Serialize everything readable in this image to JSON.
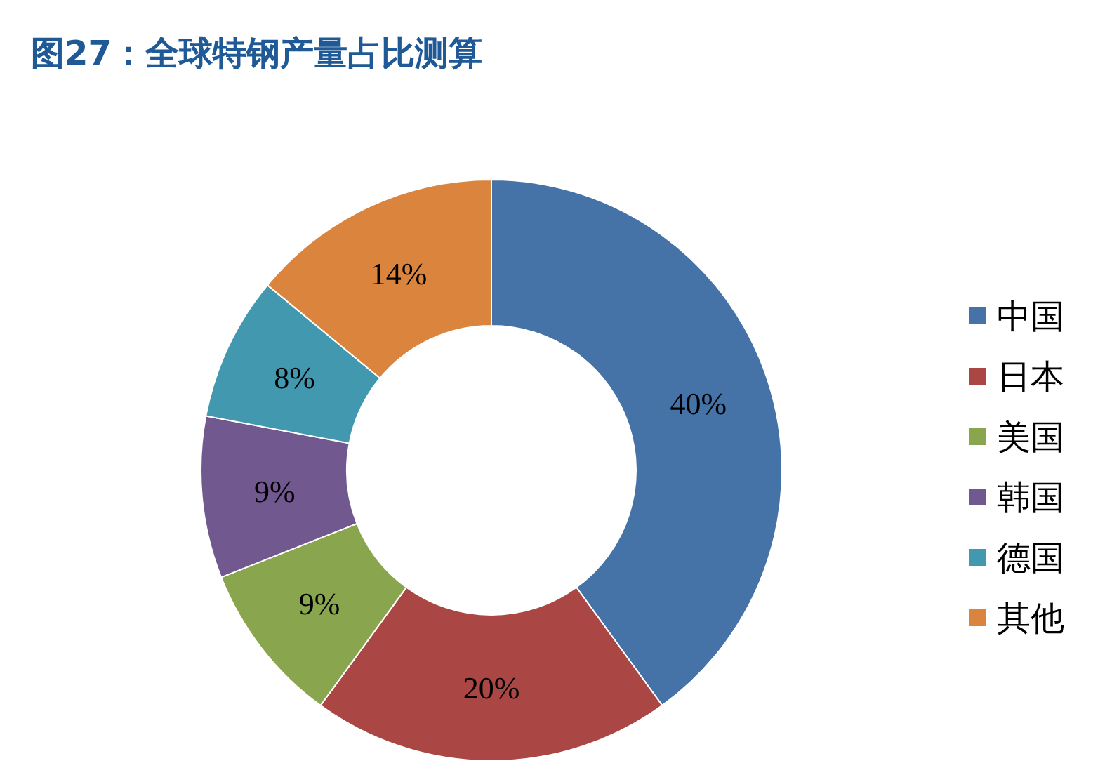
{
  "chart_data": {
    "type": "donut",
    "title": "图27：全球特钢产量占比测算",
    "categories": [
      "中国",
      "日本",
      "美国",
      "韩国",
      "德国",
      "其他"
    ],
    "values": [
      40,
      20,
      9,
      9,
      8,
      14
    ],
    "colors": [
      "#4572a7",
      "#aa4643",
      "#89a54e",
      "#71588f",
      "#4198af",
      "#db843d"
    ],
    "value_labels": [
      "40%",
      "20%",
      "9%",
      "9%",
      "8%",
      "14%"
    ],
    "legend": "right"
  }
}
